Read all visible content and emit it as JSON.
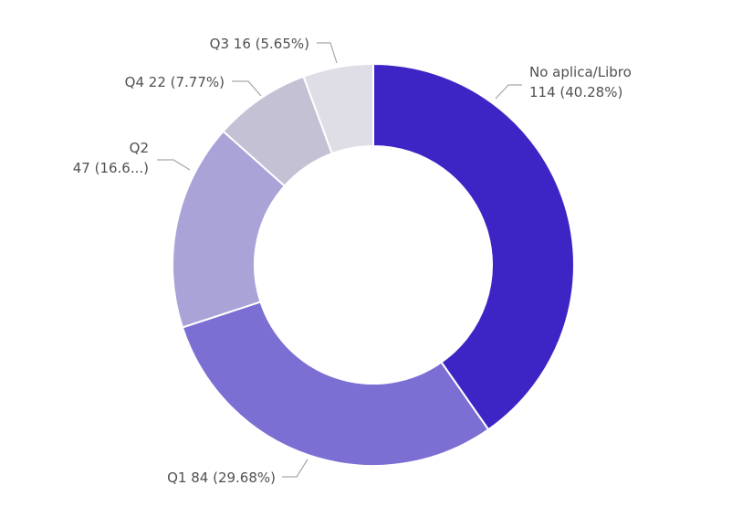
{
  "chart_data": {
    "type": "pie",
    "variant": "donut",
    "legend": "none",
    "slices": [
      {
        "name": "No aplica/Libro",
        "value": 114,
        "percent": 40.28,
        "color": "#3d25c5",
        "label_lines": [
          "No aplica/Libro",
          "114 (40.28%)"
        ]
      },
      {
        "name": "Q1",
        "value": 84,
        "percent": 29.68,
        "color": "#7b6fd3",
        "label_lines": [
          "Q1 84 (29.68%)"
        ]
      },
      {
        "name": "Q2",
        "value": 47,
        "percent": 16.61,
        "color": "#a9a3d8",
        "label_lines": [
          "Q2",
          "47 (16.6...)"
        ]
      },
      {
        "name": "Q4",
        "value": 22,
        "percent": 7.77,
        "color": "#c3c1d3",
        "label_lines": [
          "Q4 22 (7.77%)"
        ]
      },
      {
        "name": "Q3",
        "value": 16,
        "percent": 5.65,
        "color": "#dfdee6",
        "label_lines": [
          "Q3 16 (5.65%)"
        ]
      }
    ]
  }
}
